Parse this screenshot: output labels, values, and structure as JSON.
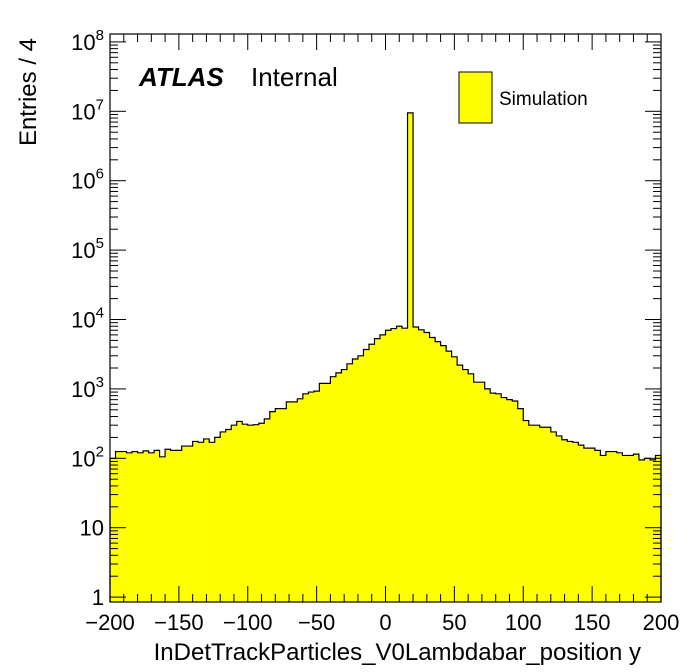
{
  "chart_data": {
    "type": "histogram",
    "xlabel": "InDetTrackParticles_V0Lambdabar_position y",
    "ylabel": "Entries / 4",
    "xlim": [
      -200,
      200
    ],
    "ylim": [
      0.85,
      130000000
    ],
    "yscale": "log",
    "bin_width": 4,
    "x_ticks": [
      "−200",
      "−150",
      "−100",
      "−50",
      "0",
      "50",
      "100",
      "150",
      "200"
    ],
    "y_ticks": [
      {
        "base": "1",
        "exp": ""
      },
      {
        "base": "10",
        "exp": ""
      },
      {
        "base": "10",
        "exp": "2"
      },
      {
        "base": "10",
        "exp": "3"
      },
      {
        "base": "10",
        "exp": "4"
      },
      {
        "base": "10",
        "exp": "5"
      },
      {
        "base": "10",
        "exp": "6"
      },
      {
        "base": "10",
        "exp": "7"
      },
      {
        "base": "10",
        "exp": "8"
      }
    ],
    "fill_color": "#ffff00",
    "line_color": "#000000",
    "series": [
      {
        "name": "Simulation",
        "values": [
          100,
          125,
          125,
          120,
          125,
          120,
          128,
          120,
          130,
          105,
          135,
          130,
          130,
          150,
          150,
          175,
          170,
          190,
          170,
          200,
          240,
          260,
          300,
          340,
          310,
          300,
          305,
          320,
          370,
          470,
          520,
          520,
          650,
          650,
          720,
          850,
          900,
          930,
          1200,
          1200,
          1500,
          1700,
          1900,
          2300,
          2700,
          3000,
          3700,
          4400,
          5300,
          6000,
          7000,
          7400,
          8000,
          7500,
          9500000,
          7800,
          7100,
          6500,
          5500,
          4800,
          4200,
          3500,
          2900,
          2200,
          1900,
          1650,
          1250,
          1250,
          1000,
          870,
          850,
          750,
          700,
          670,
          520,
          350,
          300,
          300,
          280,
          280,
          240,
          210,
          185,
          175,
          170,
          155,
          140,
          140,
          130,
          110,
          125,
          125,
          120,
          110,
          110,
          115,
          95,
          100,
          95,
          110
        ]
      }
    ],
    "legend": {
      "position": "top-right",
      "entries": [
        "Simulation"
      ]
    },
    "annotations": {
      "atlas": "ATLAS",
      "status": "Internal"
    }
  }
}
